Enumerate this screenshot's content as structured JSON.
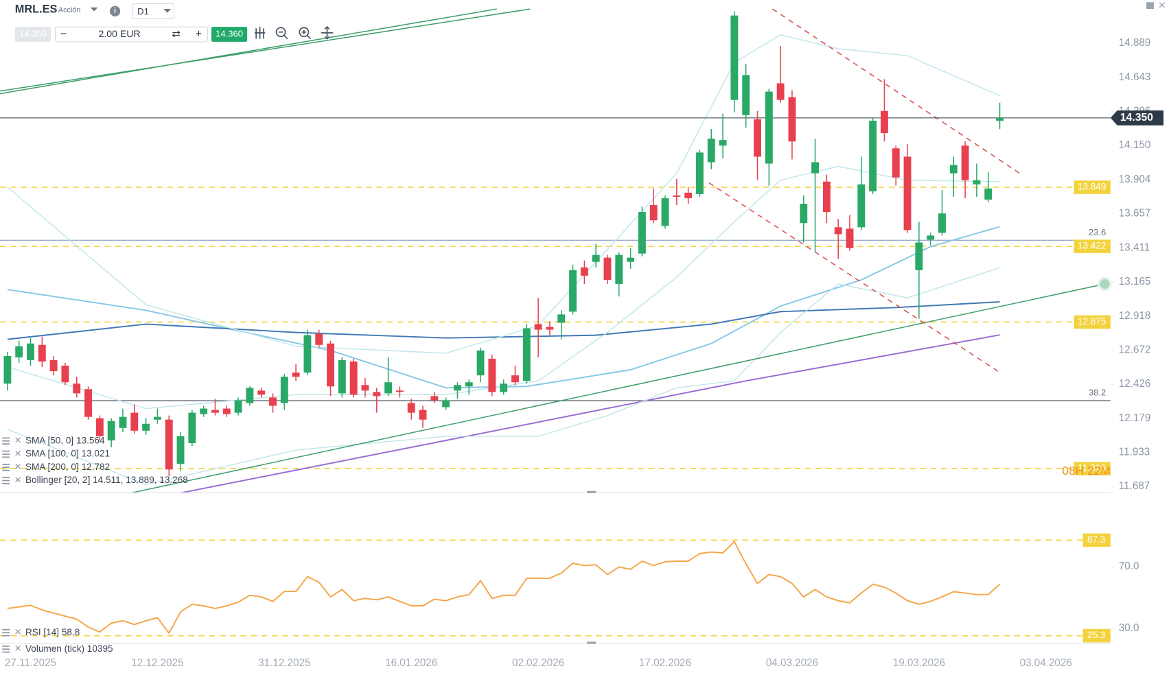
{
  "toolbar": {
    "symbol": "MRL.ES",
    "kind": "Acción",
    "timeframe": "D1",
    "bid": "14.350",
    "quantity": "2.00 EUR",
    "ask": "14.360"
  },
  "chart_data": {
    "type": "candlestick",
    "categories": [
      null,
      null,
      "27.11.2025",
      null,
      null,
      null,
      null,
      null,
      null,
      null,
      null,
      null,
      null,
      "12.12.2025",
      null,
      null,
      null,
      null,
      null,
      null,
      null,
      null,
      null,
      null,
      "31.12.2025",
      null,
      null,
      null,
      null,
      null,
      null,
      null,
      null,
      null,
      null,
      "16.01.2026",
      null,
      null,
      null,
      null,
      null,
      null,
      null,
      null,
      null,
      null,
      "02.02.2026",
      null,
      null,
      null,
      null,
      null,
      null,
      null,
      null,
      null,
      null,
      "17.02.2026",
      null,
      null,
      null,
      null,
      null,
      null,
      null,
      null,
      null,
      null,
      "04.03.2026",
      null,
      null,
      null,
      null,
      null,
      null,
      null,
      null,
      null,
      null,
      "19.03.2026",
      null,
      null,
      null,
      null,
      null,
      null,
      null,
      null,
      null,
      null,
      "03.04.2026",
      null,
      null,
      null,
      null,
      null
    ],
    "open": [
      12.43,
      12.62,
      12.6,
      12.71,
      12.6,
      12.56,
      12.43,
      12.39,
      12.18,
      12.02,
      12.11,
      12.22,
      12.09,
      12.17,
      12.17,
      11.85,
      12.0,
      12.21,
      12.24,
      12.25,
      12.22,
      12.29,
      12.38,
      12.33,
      12.29,
      12.51,
      12.51,
      12.79,
      12.72,
      12.36,
      12.59,
      12.42,
      12.37,
      12.36,
      12.38,
      12.29,
      12.24,
      12.34,
      12.26,
      12.38,
      12.41,
      12.49,
      12.61,
      12.37,
      12.49,
      12.45,
      12.86,
      12.84,
      12.87,
      12.95,
      13.27,
      13.31,
      13.34,
      13.15,
      13.31,
      13.37,
      13.72,
      13.57,
      13.79,
      13.81,
      13.8,
      14.03,
      14.15,
      14.48,
      14.37,
      14.34,
      14.02,
      14.6,
      14.5,
      13.59,
      13.95,
      13.89,
      13.56,
      13.55,
      13.56,
      13.82,
      14.4,
      14.13,
      14.07,
      13.25,
      13.47,
      13.52,
      13.95,
      14.15,
      13.87,
      13.76,
      14.33,
      null,
      null,
      null,
      null,
      null,
      null,
      null,
      null,
      null
    ],
    "high": [
      12.66,
      12.74,
      12.76,
      12.77,
      12.63,
      12.58,
      12.48,
      12.41,
      12.2,
      12.18,
      12.25,
      12.28,
      12.18,
      12.25,
      12.2,
      12.08,
      12.24,
      12.27,
      12.32,
      12.27,
      12.33,
      12.41,
      12.4,
      12.36,
      12.5,
      12.57,
      12.82,
      12.82,
      12.74,
      12.62,
      12.61,
      12.47,
      12.4,
      12.62,
      12.41,
      12.32,
      12.27,
      12.37,
      12.33,
      12.44,
      12.46,
      12.69,
      12.64,
      12.46,
      12.56,
      12.86,
      13.05,
      12.88,
      12.96,
      13.29,
      13.32,
      13.44,
      13.36,
      13.38,
      13.41,
      13.71,
      13.84,
      13.79,
      13.91,
      13.85,
      14.12,
      14.27,
      14.38,
      15.12,
      14.74,
      14.4,
      14.56,
      14.87,
      14.55,
      13.79,
      14.2,
      13.94,
      13.62,
      13.65,
      14.07,
      14.35,
      14.63,
      14.15,
      14.16,
      13.6,
      13.52,
      13.83,
      14.07,
      14.18,
      14.02,
      13.96,
      14.46,
      null,
      null,
      null,
      null,
      null,
      null,
      null,
      null,
      null
    ],
    "low": [
      12.38,
      12.58,
      12.56,
      12.55,
      12.49,
      12.42,
      12.33,
      12.17,
      12.02,
      11.97,
      12.08,
      12.07,
      12.06,
      12.14,
      11.76,
      11.8,
      11.98,
      12.19,
      12.2,
      12.19,
      12.2,
      12.27,
      12.33,
      12.22,
      12.24,
      12.45,
      12.49,
      12.69,
      12.34,
      12.33,
      12.33,
      12.33,
      12.22,
      12.34,
      12.33,
      12.17,
      12.11,
      12.29,
      12.24,
      12.32,
      12.35,
      12.44,
      12.34,
      12.35,
      12.42,
      12.43,
      12.62,
      12.78,
      12.75,
      12.93,
      13.15,
      13.27,
      13.15,
      13.06,
      13.26,
      13.35,
      13.59,
      13.55,
      13.72,
      13.73,
      13.78,
      13.98,
      14.06,
      14.39,
      14.28,
      13.9,
      13.86,
      14.46,
      14.05,
      13.45,
      13.38,
      13.59,
      13.33,
      13.39,
      13.54,
      13.8,
      14.18,
      13.86,
      13.52,
      12.9,
      13.43,
      13.5,
      13.78,
      13.77,
      13.78,
      13.74,
      14.27,
      null,
      null,
      null,
      null,
      null,
      null,
      null,
      null,
      null
    ],
    "close": [
      12.63,
      12.7,
      12.72,
      12.59,
      12.52,
      12.44,
      12.36,
      12.19,
      12.05,
      12.16,
      12.19,
      12.09,
      12.14,
      12.19,
      11.81,
      12.05,
      12.22,
      12.25,
      12.22,
      12.21,
      12.31,
      12.4,
      12.35,
      12.27,
      12.48,
      12.48,
      12.78,
      12.71,
      12.41,
      12.6,
      12.35,
      12.38,
      12.34,
      12.44,
      12.37,
      12.22,
      12.17,
      12.31,
      12.31,
      12.42,
      12.44,
      12.67,
      12.37,
      12.43,
      12.44,
      12.83,
      12.82,
      12.82,
      12.93,
      13.25,
      13.21,
      13.36,
      13.18,
      13.36,
      13.34,
      13.67,
      13.61,
      13.77,
      13.78,
      13.77,
      14.1,
      14.2,
      14.19,
      15.09,
      14.66,
      14.07,
      14.54,
      14.48,
      14.18,
      13.73,
      14.03,
      13.67,
      13.51,
      13.41,
      13.87,
      14.33,
      14.24,
      13.92,
      13.54,
      13.45,
      13.5,
      13.66,
      14.01,
      13.9,
      13.9,
      13.84,
      14.35,
      null,
      null,
      null,
      null,
      null,
      null,
      null,
      null,
      null
    ],
    "up_color": "#2aa866",
    "down_color": "#e8404e",
    "ylim": [
      11.644,
      15.202
    ],
    "yticks": [
      14.889,
      14.643,
      14.396,
      {
        "value": 14.15,
        "label": "14.150"
      },
      13.904,
      13.657,
      13.411,
      13.165,
      12.918,
      12.672,
      12.426,
      12.179,
      11.933,
      11.687
    ],
    "last_price": {
      "value": 14.35,
      "label": "14.350",
      "color": "#2e3a47"
    },
    "hlines": [
      {
        "value": 13.849,
        "color": "#f2d33d"
      },
      {
        "value": 13.422,
        "color": "#f2d33d"
      },
      {
        "value": 12.875,
        "color": "#f2d33d"
      },
      {
        "value": 11.816,
        "color": "#f2d33d"
      }
    ],
    "fib_levels": [
      {
        "value": 13.466,
        "label": "23.6",
        "color": "#8fa6bf"
      },
      {
        "value": 12.307,
        "label": "38.2",
        "color": "#5f6670"
      }
    ],
    "overlays": [
      {
        "name": "SMA [50, 0] 13.564",
        "color": "#86c8e6",
        "x": [
          0,
          12,
          19,
          28,
          38,
          45,
          54,
          61,
          67,
          74,
          80,
          86
        ],
        "values": [
          13.11,
          12.96,
          12.83,
          12.67,
          12.4,
          12.41,
          12.53,
          12.72,
          12.99,
          13.18,
          13.42,
          13.564
        ]
      },
      {
        "name": "SMA [100, 0] 13.021",
        "color": "#3f78b5",
        "x": [
          0,
          12,
          25,
          38,
          51,
          61,
          67,
          77,
          86
        ],
        "values": [
          12.75,
          12.86,
          12.8,
          12.76,
          12.78,
          12.86,
          12.95,
          12.98,
          13.021
        ]
      },
      {
        "name": "SMA [200, 0] 12.782",
        "color": "#9a6bd4",
        "x": [
          15,
          38,
          64,
          86
        ],
        "values": [
          11.64,
          12.02,
          12.45,
          12.782
        ]
      },
      {
        "name": "Bollinger [20, 2] 14.511, 13.889, 13.268",
        "color": "#bfe6ea",
        "x": [
          0,
          12,
          25,
          38,
          46,
          52,
          58,
          63,
          67,
          72,
          78,
          86
        ],
        "upper": [
          13.85,
          13.0,
          12.7,
          12.65,
          12.85,
          13.4,
          13.95,
          14.75,
          14.95,
          14.85,
          14.8,
          14.511
        ],
        "middle": [
          12.55,
          12.25,
          12.35,
          12.35,
          12.45,
          12.8,
          13.2,
          13.6,
          13.9,
          14.0,
          13.9,
          13.889
        ],
        "lower": [
          12.1,
          11.7,
          11.95,
          12.05,
          12.05,
          12.2,
          12.4,
          12.45,
          12.8,
          13.15,
          13.05,
          13.268
        ]
      }
    ],
    "trendlines": [
      {
        "color": "#3e9e6b",
        "dashed": false,
        "x": [
          10.7,
          95.1
        ],
        "values": [
          11.64,
          13.15
        ]
      },
      {
        "color": "#d6504a",
        "dashed": true,
        "x": [
          66.3,
          88.0
        ],
        "values": [
          15.137,
          13.935
        ]
      },
      {
        "color": "#d6504a",
        "dashed": true,
        "x": [
          60.8,
          86.1
        ],
        "values": [
          13.881,
          12.506
        ]
      },
      {
        "color": "#3e9e6b",
        "dashed": false,
        "x": [
          -0.65,
          45.3
        ],
        "values": [
          14.544,
          15.137
        ]
      },
      {
        "color": "#3e9e6b",
        "dashed": false,
        "x": [
          -0.65,
          42.4
        ],
        "values": [
          14.525,
          15.137
        ]
      }
    ],
    "countdown": "08H 22M",
    "volume_legend": "Volumen (tick) 10395",
    "rsi": {
      "type": "line",
      "name": "RSI [14] 58.8",
      "color": "#f5a54a",
      "values": [
        43,
        44,
        45,
        42,
        40,
        38,
        36,
        31,
        27.7,
        33.5,
        35,
        32.6,
        35,
        37,
        27,
        40.8,
        45.7,
        44.7,
        43,
        44.7,
        47,
        51.5,
        50.5,
        47.6,
        54,
        54,
        63.6,
        60,
        50.5,
        55.3,
        48,
        49.5,
        48.6,
        50.5,
        47.6,
        44.7,
        44.7,
        49,
        48,
        50.5,
        52,
        61,
        49.5,
        51.5,
        51.5,
        62.6,
        62.6,
        62.6,
        66,
        72.3,
        70.8,
        71.3,
        65,
        69.9,
        68.4,
        73.7,
        70.8,
        73.3,
        73.7,
        73.7,
        78.6,
        79.6,
        79,
        86.3,
        72,
        59.2,
        65,
        63.6,
        59.2,
        50.5,
        55.3,
        50.5,
        48,
        46.6,
        53,
        58.7,
        56.8,
        53,
        48,
        45.7,
        47.6,
        50.5,
        53.9,
        53,
        52,
        52,
        58.8,
        null,
        null,
        null,
        null,
        null,
        null,
        null,
        null,
        null
      ],
      "ylim": [
        16.6,
        117.3
      ],
      "yticks": [
        {
          "value": 70,
          "label": "70.0"
        },
        {
          "value": 30,
          "label": "30.0"
        }
      ],
      "hlines": [
        87.3,
        25.3
      ],
      "hline_color": "#f2d33d"
    }
  }
}
